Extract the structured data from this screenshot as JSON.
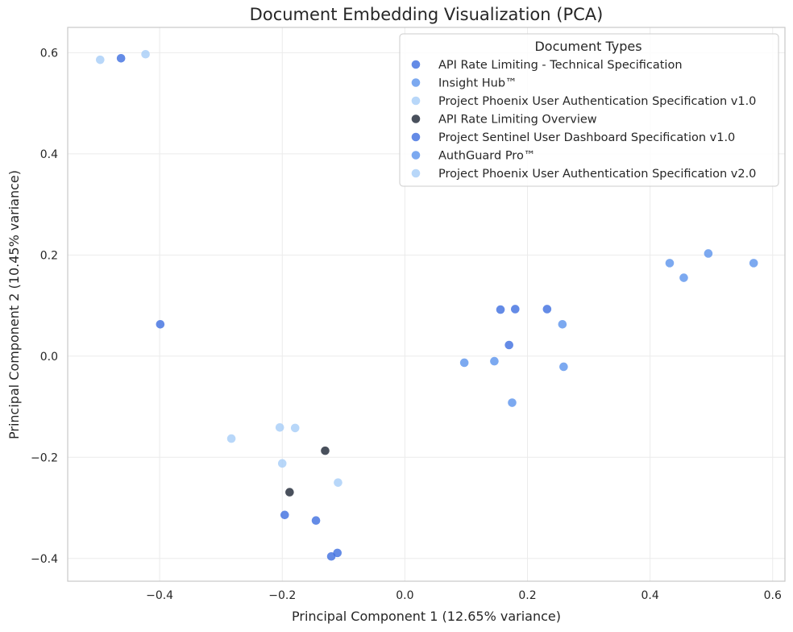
{
  "chart_data": {
    "type": "scatter",
    "title": "Document Embedding Visualization (PCA)",
    "xlabel": "Principal Component 1 (12.65% variance)",
    "ylabel": "Principal Component 2 (10.45% variance)",
    "xlim": [
      -0.55,
      0.62
    ],
    "ylim": [
      -0.445,
      0.65
    ],
    "xticks": [
      -0.4,
      -0.2,
      0.0,
      0.2,
      0.4,
      0.6
    ],
    "xtick_labels": [
      "−0.4",
      "−0.2",
      "0.0",
      "0.2",
      "0.4",
      "0.6"
    ],
    "yticks": [
      -0.4,
      -0.2,
      0.0,
      0.2,
      0.4,
      0.6
    ],
    "ytick_labels": [
      "−0.4",
      "−0.2",
      "0.0",
      "0.2",
      "0.4",
      "0.6"
    ],
    "grid": true,
    "legend_title": "Document Types",
    "legend_position": "top-right",
    "series": [
      {
        "name": "API Rate Limiting - Technical Specification",
        "color": "#3d6ee0",
        "points": [
          [
            -0.463,
            0.589
          ]
        ]
      },
      {
        "name": "Insight Hub™",
        "color": "#5b93ec",
        "points": [
          [
            0.432,
            0.184
          ],
          [
            0.455,
            0.155
          ],
          [
            0.495,
            0.203
          ],
          [
            0.569,
            0.184
          ]
        ]
      },
      {
        "name": "Project Phoenix User Authentication Specification v1.0",
        "color": "#a6cdf7",
        "points": [
          [
            -0.497,
            0.586
          ],
          [
            -0.423,
            0.597
          ]
        ]
      },
      {
        "name": "API Rate Limiting Overview",
        "color": "#1c2433",
        "points": [
          [
            -0.13,
            -0.187
          ],
          [
            -0.188,
            -0.269
          ]
        ]
      },
      {
        "name": "Project Sentinel User Dashboard Specification v1.0",
        "color": "#3d6ee0",
        "points": [
          [
            -0.399,
            0.063
          ],
          [
            -0.196,
            -0.314
          ],
          [
            -0.145,
            -0.325
          ],
          [
            -0.12,
            -0.396
          ],
          [
            -0.11,
            -0.389
          ],
          [
            0.156,
            0.092
          ],
          [
            0.18,
            0.093
          ],
          [
            0.232,
            0.093
          ],
          [
            0.17,
            0.022
          ]
        ]
      },
      {
        "name": "AuthGuard Pro™",
        "color": "#5b93ec",
        "points": [
          [
            0.257,
            0.063
          ],
          [
            0.097,
            -0.013
          ],
          [
            0.146,
            -0.01
          ],
          [
            0.259,
            -0.021
          ],
          [
            0.175,
            -0.092
          ]
        ]
      },
      {
        "name": "Project Phoenix User Authentication Specification v2.0",
        "color": "#a6cdf7",
        "points": [
          [
            -0.204,
            -0.141
          ],
          [
            -0.179,
            -0.142
          ],
          [
            -0.283,
            -0.163
          ],
          [
            -0.2,
            -0.212
          ],
          [
            -0.109,
            -0.25
          ]
        ]
      }
    ]
  }
}
